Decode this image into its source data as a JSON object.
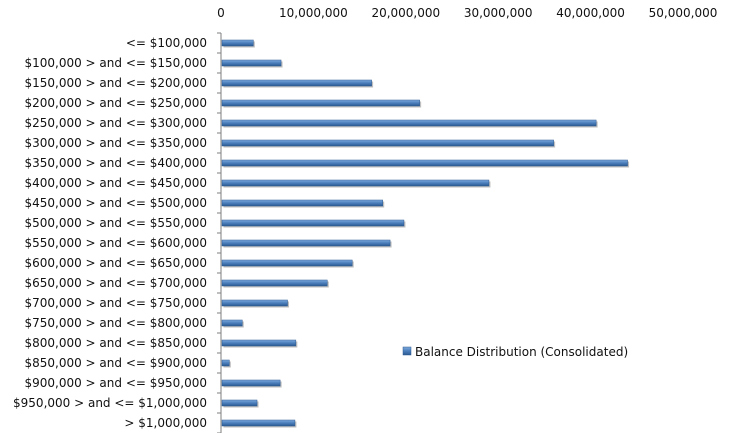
{
  "chart_data": {
    "type": "bar",
    "orientation": "horizontal",
    "categories": [
      "<= $100,000",
      "$100,000 > and <= $150,000",
      "$150,000 > and <= $200,000",
      "$200,000 > and <= $250,000",
      "$250,000 > and <= $300,000",
      "$300,000 > and <= $350,000",
      "$350,000 > and <= $400,000",
      "$400,000 > and <= $450,000",
      "$450,000 > and <= $500,000",
      "$500,000 > and <= $550,000",
      "$550,000 > and <= $600,000",
      "$600,000 > and <= $650,000",
      "$650,000 > and <= $700,000",
      "$700,000 > and <= $750,000",
      "$750,000 > and <= $800,000",
      "$800,000 > and <= $850,000",
      "$850,000 > and <= $900,000",
      "$900,000 > and <= $950,000",
      "$950,000 > and <= $1,000,000",
      "> $1,000,000"
    ],
    "series": [
      {
        "name": "Balance Distribution (Consolidated)",
        "values": [
          3500000,
          6500000,
          16300000,
          21500000,
          40600000,
          36000000,
          44000000,
          29000000,
          17500000,
          19800000,
          18300000,
          14200000,
          11500000,
          7200000,
          2300000,
          8100000,
          900000,
          6400000,
          3900000,
          8000000
        ]
      }
    ],
    "xaxis": {
      "position": "top",
      "range": [
        0,
        50000000
      ],
      "tick_labels": [
        "0",
        "10,000,000",
        "20,000,000",
        "30,000,000",
        "40,000,000",
        "50,000,000"
      ]
    },
    "grid": false,
    "legend": {
      "position": "lower-right inside plot"
    },
    "colors": {
      "bar_fill": "#4a7ebb",
      "bar_light": "#7fa9dc",
      "bar_dark": "#2c5a91",
      "axis": "#7f7f7f"
    }
  }
}
